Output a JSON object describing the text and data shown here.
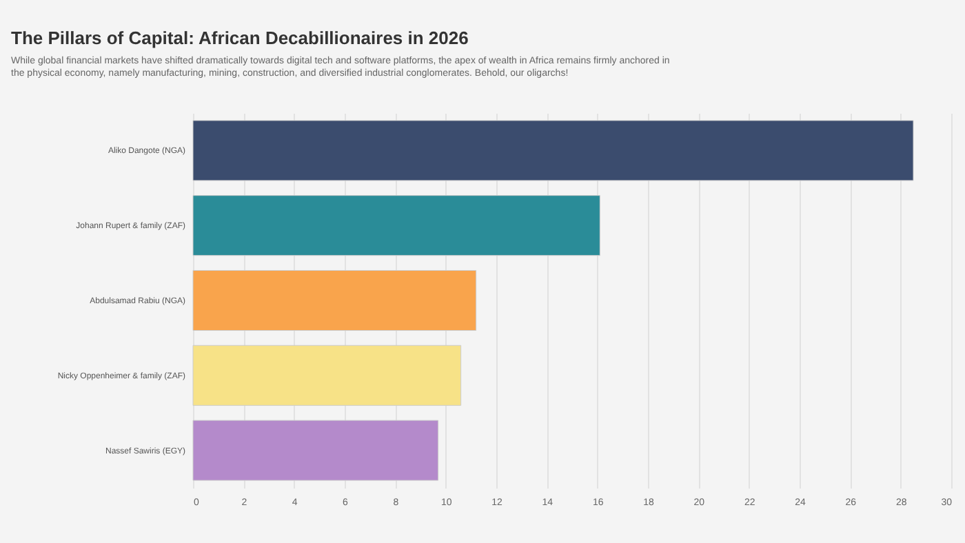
{
  "chart_data": {
    "type": "bar",
    "orientation": "horizontal",
    "title": "The Pillars of Capital: African Decabillionaires in 2026",
    "subtitle": "While global financial markets have shifted dramatically towards digital tech and software platforms, the apex of wealth in Africa remains firmly anchored in the physical economy, namely manufacturing, mining, construction, and diversified industrial conglomerates. Behold, our oligarchs!",
    "categories": [
      "Aliko Dangote (NGA)",
      "Johann Rupert & family (ZAF)",
      "Abdulsamad Rabiu (NGA)",
      "Nicky Oppenheimer & family (ZAF)",
      "Nassef Sawiris (EGY)"
    ],
    "values": [
      28.5,
      16.1,
      11.2,
      10.6,
      9.7
    ],
    "colors": [
      "#3b4c6e",
      "#2a8c98",
      "#f9a44c",
      "#f7e287",
      "#b48acb"
    ],
    "xlim": [
      0,
      30
    ],
    "xticks": [
      0,
      2,
      4,
      6,
      8,
      10,
      12,
      14,
      16,
      18,
      20,
      22,
      24,
      26,
      28,
      30
    ],
    "grid": "x"
  }
}
